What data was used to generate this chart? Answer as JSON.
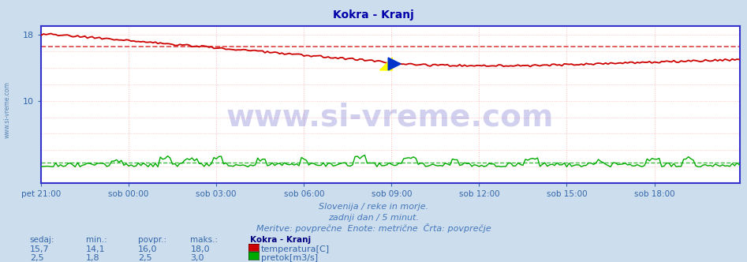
{
  "title": "Kokra - Kranj",
  "title_color": "#0000aa",
  "bg_color": "#ccdded",
  "plot_bg_color": "#ffffff",
  "grid_color": "#ffaaaa",
  "grid_color_v": "#ffbbbb",
  "axis_color": "#3333cc",
  "tick_color": "#3366aa",
  "ylim": [
    0,
    19
  ],
  "ytick_vals": [
    10,
    18
  ],
  "xtick_labels": [
    "pet 21:00",
    "sob 00:00",
    "sob 03:00",
    "sob 06:00",
    "sob 09:00",
    "sob 12:00",
    "sob 15:00",
    "sob 18:00"
  ],
  "temp_avg": 16.5,
  "temp_min": 14.1,
  "temp_max": 18.0,
  "temp_now": 15.7,
  "flow_avg": 2.5,
  "flow_min": 1.8,
  "flow_max": 3.0,
  "flow_now": 2.5,
  "temp_color": "#cc0000",
  "flow_color": "#00aa00",
  "avg_temp_line_color": "#dd4444",
  "avg_flow_line_color": "#44bb44",
  "watermark": "www.si-vreme.com",
  "watermark_color": "#0000aa",
  "watermark_alpha": 0.18,
  "watermark_fontsize": 28,
  "subtitle1": "Slovenija / reke in morje.",
  "subtitle2": "zadnji dan / 5 minut.",
  "subtitle3": "Meritve: povprečne  Enote: metrične  Črta: povprečje",
  "subtitle_color": "#4477bb",
  "subtitle_fontsize": 8,
  "legend_title": "Kokra - Kranj",
  "legend_title_color": "#000080",
  "legend_color": "#3366aa",
  "sidebar_text": "www.si-vreme.com",
  "sidebar_color": "#4477aa",
  "n_points": 288
}
